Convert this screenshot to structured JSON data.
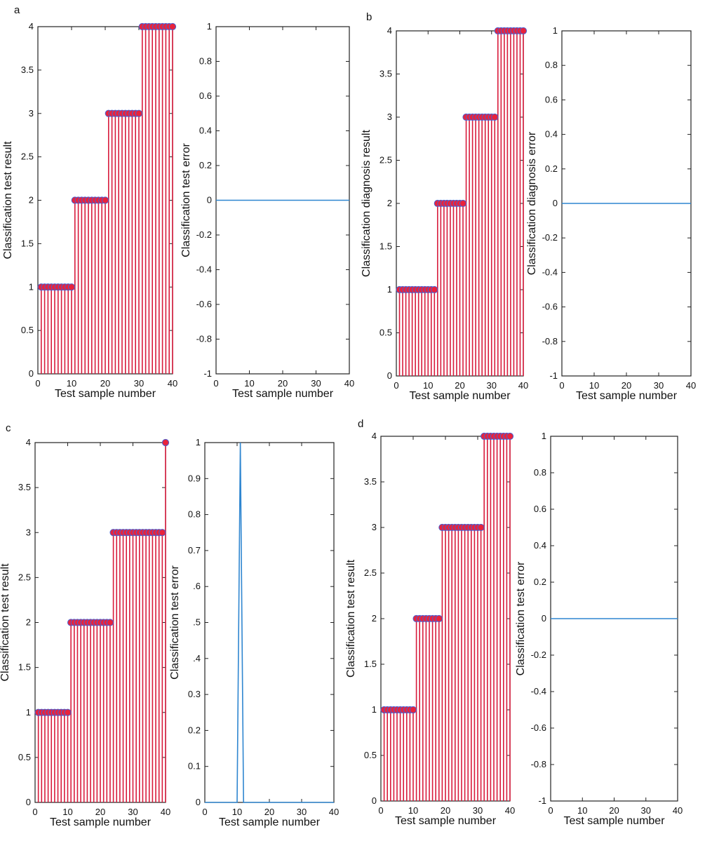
{
  "figure": {
    "colors": {
      "stem": "#d81b3c",
      "marker_fill": "#e8233c",
      "marker_edge": "#4a5fd0",
      "error_line": "#2f86d0",
      "axes": "#222222"
    },
    "panels": [
      {
        "letter": "a",
        "result": {
          "type": "stem",
          "xlabel": "Test sample number",
          "ylabel": "Classification test result",
          "xlim": [
            0,
            40
          ],
          "ylim": [
            0,
            4
          ],
          "xticks": [
            "0",
            "10",
            "20",
            "30",
            "40"
          ],
          "yticks": [
            "0",
            "0.5",
            "1",
            "1.5",
            "2",
            "2.5",
            "3",
            "3.5",
            "4"
          ],
          "x": [
            1,
            2,
            3,
            4,
            5,
            6,
            7,
            8,
            9,
            10,
            11,
            12,
            13,
            14,
            15,
            16,
            17,
            18,
            19,
            20,
            21,
            22,
            23,
            24,
            25,
            26,
            27,
            28,
            29,
            30,
            31,
            32,
            33,
            34,
            35,
            36,
            37,
            38,
            39,
            40
          ],
          "values": [
            1,
            1,
            1,
            1,
            1,
            1,
            1,
            1,
            1,
            1,
            2,
            2,
            2,
            2,
            2,
            2,
            2,
            2,
            2,
            2,
            3,
            3,
            3,
            3,
            3,
            3,
            3,
            3,
            3,
            3,
            4,
            4,
            4,
            4,
            4,
            4,
            4,
            4,
            4,
            4
          ]
        },
        "error": {
          "type": "line",
          "xlabel": "Test sample number",
          "ylabel": "Classification test error",
          "xlim": [
            0,
            40
          ],
          "ylim": [
            -1,
            1
          ],
          "xticks": [
            "0",
            "10",
            "20",
            "30",
            "40"
          ],
          "yticks": [
            "-1",
            "-0.8",
            "-0.6",
            "-0.4",
            "-0.2",
            "0",
            "0.2",
            "0.4",
            "0.6",
            "0.8",
            "1"
          ],
          "x": [
            0,
            40
          ],
          "values": [
            0,
            0
          ]
        }
      },
      {
        "letter": "b",
        "result": {
          "type": "stem",
          "xlabel": "Test sample number",
          "ylabel": "Classification diagnosis result",
          "xlim": [
            0,
            40
          ],
          "ylim": [
            0,
            4
          ],
          "xticks": [
            "0",
            "10",
            "20",
            "30",
            "40"
          ],
          "yticks": [
            "0",
            "0.5",
            "1",
            "1.5",
            "2",
            "2.5",
            "3",
            "3.5",
            "4"
          ],
          "x": [
            1,
            2,
            3,
            4,
            5,
            6,
            7,
            8,
            9,
            10,
            11,
            12,
            13,
            14,
            15,
            16,
            17,
            18,
            19,
            20,
            21,
            22,
            23,
            24,
            25,
            26,
            27,
            28,
            29,
            30,
            31,
            32,
            33,
            34,
            35,
            36,
            37,
            38,
            39,
            40
          ],
          "values": [
            1,
            1,
            1,
            1,
            1,
            1,
            1,
            1,
            1,
            1,
            1,
            1,
            2,
            2,
            2,
            2,
            2,
            2,
            2,
            2,
            2,
            3,
            3,
            3,
            3,
            3,
            3,
            3,
            3,
            3,
            3,
            4,
            4,
            4,
            4,
            4,
            4,
            4,
            4,
            4
          ]
        },
        "error": {
          "type": "line",
          "xlabel": "Test sample number",
          "ylabel": "Classification diagnosis error",
          "xlim": [
            0,
            40
          ],
          "ylim": [
            -1,
            1
          ],
          "xticks": [
            "0",
            "10",
            "20",
            "30",
            "40"
          ],
          "yticks": [
            "-1",
            "-0.8",
            "-0.6",
            "-0.4",
            "-0.2",
            "0",
            "0.2",
            "0.4",
            "0.6",
            "0.8",
            "1"
          ],
          "x": [
            0,
            40
          ],
          "values": [
            0,
            0
          ]
        }
      },
      {
        "letter": "c",
        "result": {
          "type": "stem",
          "xlabel": "Test sample number",
          "ylabel": "Classification test result",
          "xlim": [
            0,
            40
          ],
          "ylim": [
            0,
            4
          ],
          "xticks": [
            "0",
            "10",
            "20",
            "30",
            "40"
          ],
          "yticks": [
            "0",
            "0.5",
            "1",
            "1.5",
            "2",
            "2.5",
            "3",
            "3.5",
            "4"
          ],
          "x": [
            1,
            2,
            3,
            4,
            5,
            6,
            7,
            8,
            9,
            10,
            11,
            12,
            13,
            14,
            15,
            16,
            17,
            18,
            19,
            20,
            21,
            22,
            23,
            24,
            25,
            26,
            27,
            28,
            29,
            30,
            31,
            32,
            33,
            34,
            35,
            36,
            37,
            38,
            39,
            40
          ],
          "values": [
            1,
            1,
            1,
            1,
            1,
            1,
            1,
            1,
            1,
            1,
            2,
            2,
            2,
            2,
            2,
            2,
            2,
            2,
            2,
            2,
            2,
            2,
            2,
            3,
            3,
            3,
            3,
            3,
            3,
            3,
            3,
            3,
            3,
            3,
            3,
            3,
            3,
            3,
            3,
            4
          ]
        },
        "error": {
          "type": "line",
          "xlabel": "Test sample number",
          "ylabel": "Classification test error",
          "xlim": [
            0,
            40
          ],
          "ylim": [
            0,
            1
          ],
          "xticks": [
            "0",
            "10",
            "20",
            "30",
            "40"
          ],
          "yticks": [
            "0",
            "0.1",
            "0.2",
            "0.3",
            ".4",
            ".5",
            ".6",
            "0.7",
            "0.8",
            "0.9",
            "1"
          ],
          "x": [
            0,
            10,
            11,
            12,
            40
          ],
          "values": [
            0,
            0,
            1,
            0,
            0
          ]
        }
      },
      {
        "letter": "d",
        "result": {
          "type": "stem",
          "xlabel": "Test sample number",
          "ylabel": "Classification test result",
          "xlim": [
            0,
            40
          ],
          "ylim": [
            0,
            4
          ],
          "xticks": [
            "0",
            "10",
            "20",
            "30",
            "40"
          ],
          "yticks": [
            "0",
            "0.5",
            "1",
            "1.5",
            "2",
            "2.5",
            "3",
            "3.5",
            "4"
          ],
          "x": [
            1,
            2,
            3,
            4,
            5,
            6,
            7,
            8,
            9,
            10,
            11,
            12,
            13,
            14,
            15,
            16,
            17,
            18,
            19,
            20,
            21,
            22,
            23,
            24,
            25,
            26,
            27,
            28,
            29,
            30,
            31,
            32,
            33,
            34,
            35,
            36,
            37,
            38,
            39,
            40
          ],
          "values": [
            1,
            1,
            1,
            1,
            1,
            1,
            1,
            1,
            1,
            1,
            2,
            2,
            2,
            2,
            2,
            2,
            2,
            2,
            3,
            3,
            3,
            3,
            3,
            3,
            3,
            3,
            3,
            3,
            3,
            3,
            3,
            4,
            4,
            4,
            4,
            4,
            4,
            4,
            4,
            4
          ]
        },
        "error": {
          "type": "line",
          "xlabel": "Test sample number",
          "ylabel": "Classification test error",
          "xlim": [
            0,
            40
          ],
          "ylim": [
            -1,
            1
          ],
          "xticks": [
            "0",
            "10",
            "20",
            "30",
            "40"
          ],
          "yticks": [
            "-1",
            "-0.8",
            "-0.6",
            "-0.4",
            "-0.2",
            "0",
            "0.2",
            "0.4",
            "0.6",
            "0.8",
            "1"
          ],
          "x": [
            0,
            40
          ],
          "values": [
            0,
            0
          ]
        }
      }
    ]
  },
  "chart_data": [
    {
      "type": "stem",
      "panel": "a",
      "xlabel": "Test sample number",
      "ylabel": "Classification test result",
      "xlim": [
        0,
        40
      ],
      "ylim": [
        0,
        4
      ],
      "x": "1..40",
      "values": [
        1,
        1,
        1,
        1,
        1,
        1,
        1,
        1,
        1,
        1,
        2,
        2,
        2,
        2,
        2,
        2,
        2,
        2,
        2,
        2,
        3,
        3,
        3,
        3,
        3,
        3,
        3,
        3,
        3,
        3,
        4,
        4,
        4,
        4,
        4,
        4,
        4,
        4,
        4,
        4
      ]
    },
    {
      "type": "line",
      "panel": "a",
      "xlabel": "Test sample number",
      "ylabel": "Classification test error",
      "xlim": [
        0,
        40
      ],
      "ylim": [
        -1,
        1
      ],
      "x": [
        0,
        40
      ],
      "values": [
        0,
        0
      ]
    },
    {
      "type": "stem",
      "panel": "b",
      "xlabel": "Test sample number",
      "ylabel": "Classification diagnosis result",
      "xlim": [
        0,
        40
      ],
      "ylim": [
        0,
        4
      ],
      "x": "1..40",
      "values": [
        1,
        1,
        1,
        1,
        1,
        1,
        1,
        1,
        1,
        1,
        1,
        1,
        2,
        2,
        2,
        2,
        2,
        2,
        2,
        2,
        2,
        3,
        3,
        3,
        3,
        3,
        3,
        3,
        3,
        3,
        3,
        4,
        4,
        4,
        4,
        4,
        4,
        4,
        4,
        4
      ]
    },
    {
      "type": "line",
      "panel": "b",
      "xlabel": "Test sample number",
      "ylabel": "Classification diagnosis error",
      "xlim": [
        0,
        40
      ],
      "ylim": [
        -1,
        1
      ],
      "x": [
        0,
        40
      ],
      "values": [
        0,
        0
      ]
    },
    {
      "type": "stem",
      "panel": "c",
      "xlabel": "Test sample number",
      "ylabel": "Classification test result",
      "xlim": [
        0,
        40
      ],
      "ylim": [
        0,
        4
      ],
      "x": "1..40",
      "values": [
        1,
        1,
        1,
        1,
        1,
        1,
        1,
        1,
        1,
        1,
        2,
        2,
        2,
        2,
        2,
        2,
        2,
        2,
        2,
        2,
        2,
        2,
        2,
        3,
        3,
        3,
        3,
        3,
        3,
        3,
        3,
        3,
        3,
        3,
        3,
        3,
        3,
        3,
        3,
        4
      ]
    },
    {
      "type": "line",
      "panel": "c",
      "xlabel": "Test sample number",
      "ylabel": "Classification test error",
      "xlim": [
        0,
        40
      ],
      "ylim": [
        0,
        1
      ],
      "x": [
        0,
        10,
        11,
        12,
        40
      ],
      "values": [
        0,
        0,
        1,
        0,
        0
      ]
    },
    {
      "type": "stem",
      "panel": "d",
      "xlabel": "Test sample number",
      "ylabel": "Classification test result",
      "xlim": [
        0,
        40
      ],
      "ylim": [
        0,
        4
      ],
      "x": "1..40",
      "values": [
        1,
        1,
        1,
        1,
        1,
        1,
        1,
        1,
        1,
        1,
        2,
        2,
        2,
        2,
        2,
        2,
        2,
        2,
        3,
        3,
        3,
        3,
        3,
        3,
        3,
        3,
        3,
        3,
        3,
        3,
        3,
        4,
        4,
        4,
        4,
        4,
        4,
        4,
        4,
        4
      ]
    },
    {
      "type": "line",
      "panel": "d",
      "xlabel": "Test sample number",
      "ylabel": "Classification test error",
      "xlim": [
        0,
        40
      ],
      "ylim": [
        -1,
        1
      ],
      "x": [
        0,
        40
      ],
      "values": [
        0,
        0
      ]
    }
  ]
}
